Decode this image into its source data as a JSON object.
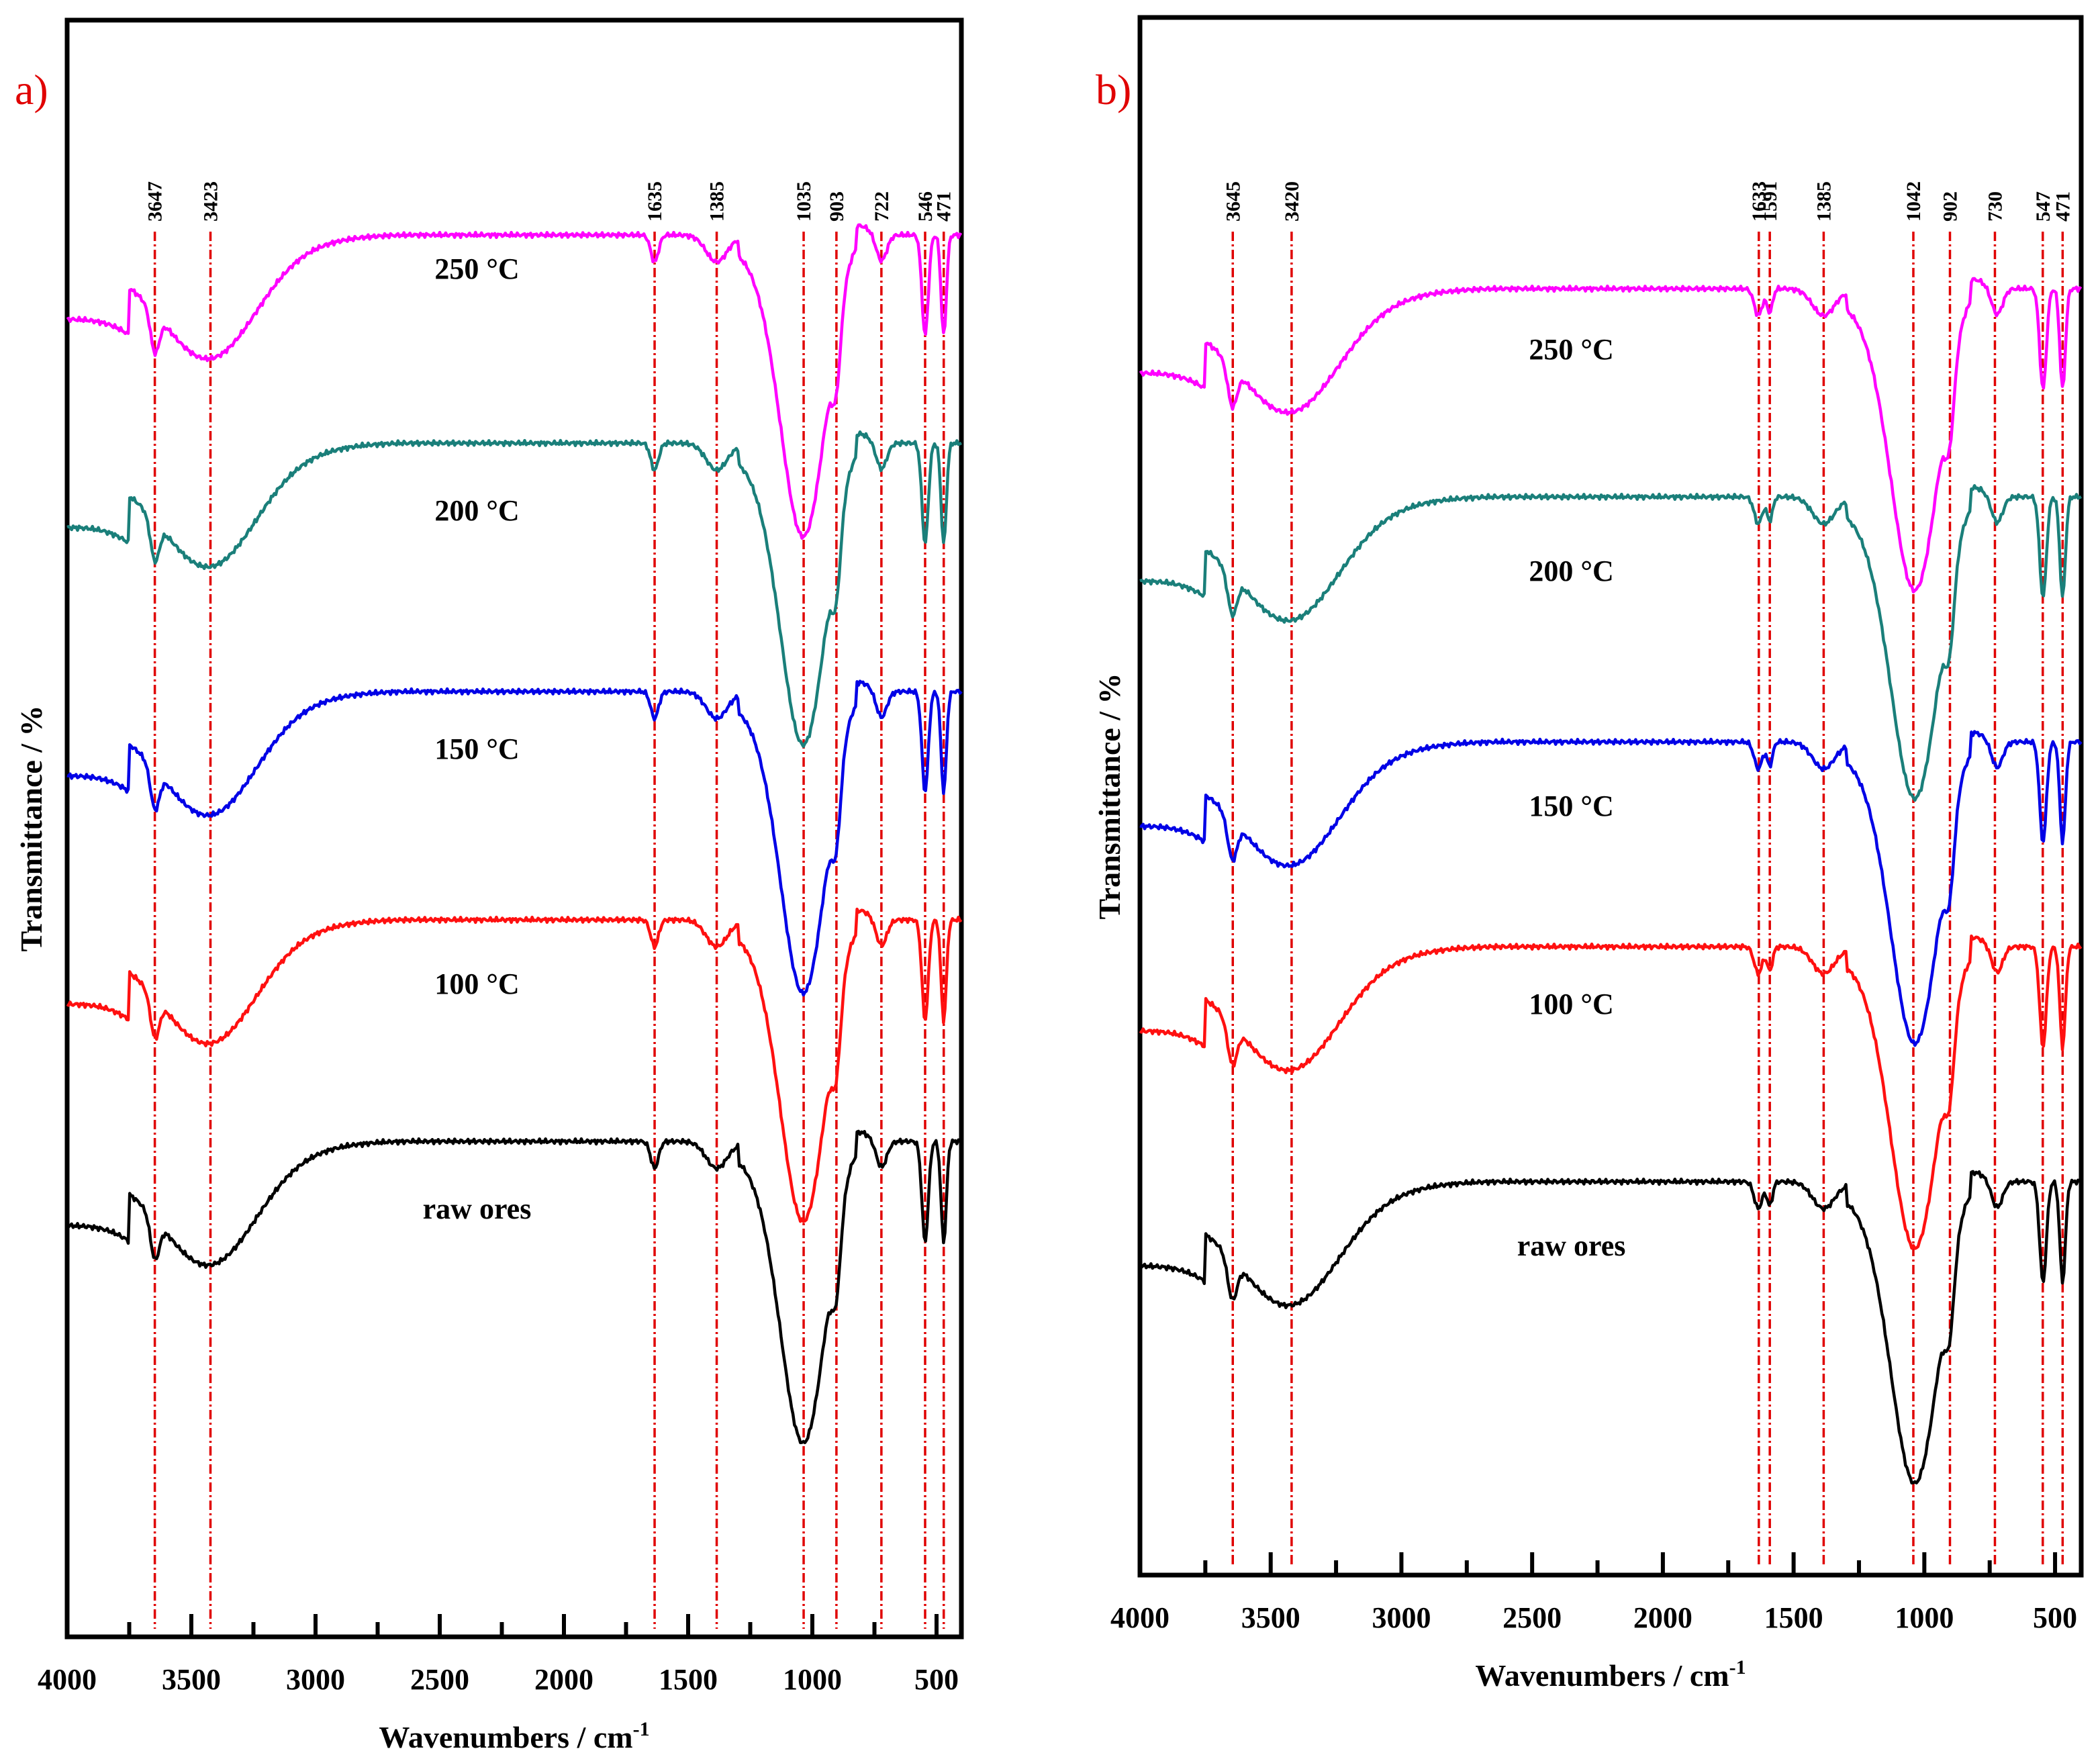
{
  "chart_data": [
    {
      "type": "line",
      "panel_label": "a)",
      "xlabel_main": "Wavenumbers / cm",
      "xlabel_sup": "-1",
      "ylabel": "Transmittance / %",
      "xlim": [
        4000,
        400
      ],
      "x_ticks": [
        "4000",
        "3500",
        "3000",
        "2500",
        "2000",
        "1500",
        "1000",
        "500"
      ],
      "peaks": [
        "3647",
        "3423",
        "1635",
        "1385",
        "1035",
        "903",
        "722",
        "546",
        "471"
      ],
      "series": [
        {
          "name": "250 °C",
          "color": "#ff00ff",
          "offset": 4
        },
        {
          "name": "200 °C",
          "color": "#1a7f7a",
          "offset": 3
        },
        {
          "name": "150 °C",
          "color": "#0000e6",
          "offset": 2
        },
        {
          "name": "100 °C",
          "color": "#ff1010",
          "offset": 1
        },
        {
          "name": "raw ores",
          "color": "#000000",
          "offset": 0
        }
      ]
    },
    {
      "type": "line",
      "panel_label": "b)",
      "xlabel_main": "Wavenumbers / cm",
      "xlabel_sup": "-1",
      "ylabel": "Transmittance / %",
      "xlim": [
        4000,
        400
      ],
      "x_ticks": [
        "4000",
        "3500",
        "3000",
        "2500",
        "2000",
        "1500",
        "1000",
        "500"
      ],
      "peaks": [
        "3645",
        "3420",
        "1633",
        "1591",
        "1385",
        "1042",
        "902",
        "730",
        "547",
        "471"
      ],
      "series": [
        {
          "name": "250 °C",
          "color": "#ff00ff",
          "offset": 4
        },
        {
          "name": "200 °C",
          "color": "#1a7f7a",
          "offset": 3
        },
        {
          "name": "150 °C",
          "color": "#0000e6",
          "offset": 2
        },
        {
          "name": "100 °C",
          "color": "#ff1010",
          "offset": 1
        },
        {
          "name": "raw ores",
          "color": "#000000",
          "offset": 0
        }
      ]
    }
  ]
}
